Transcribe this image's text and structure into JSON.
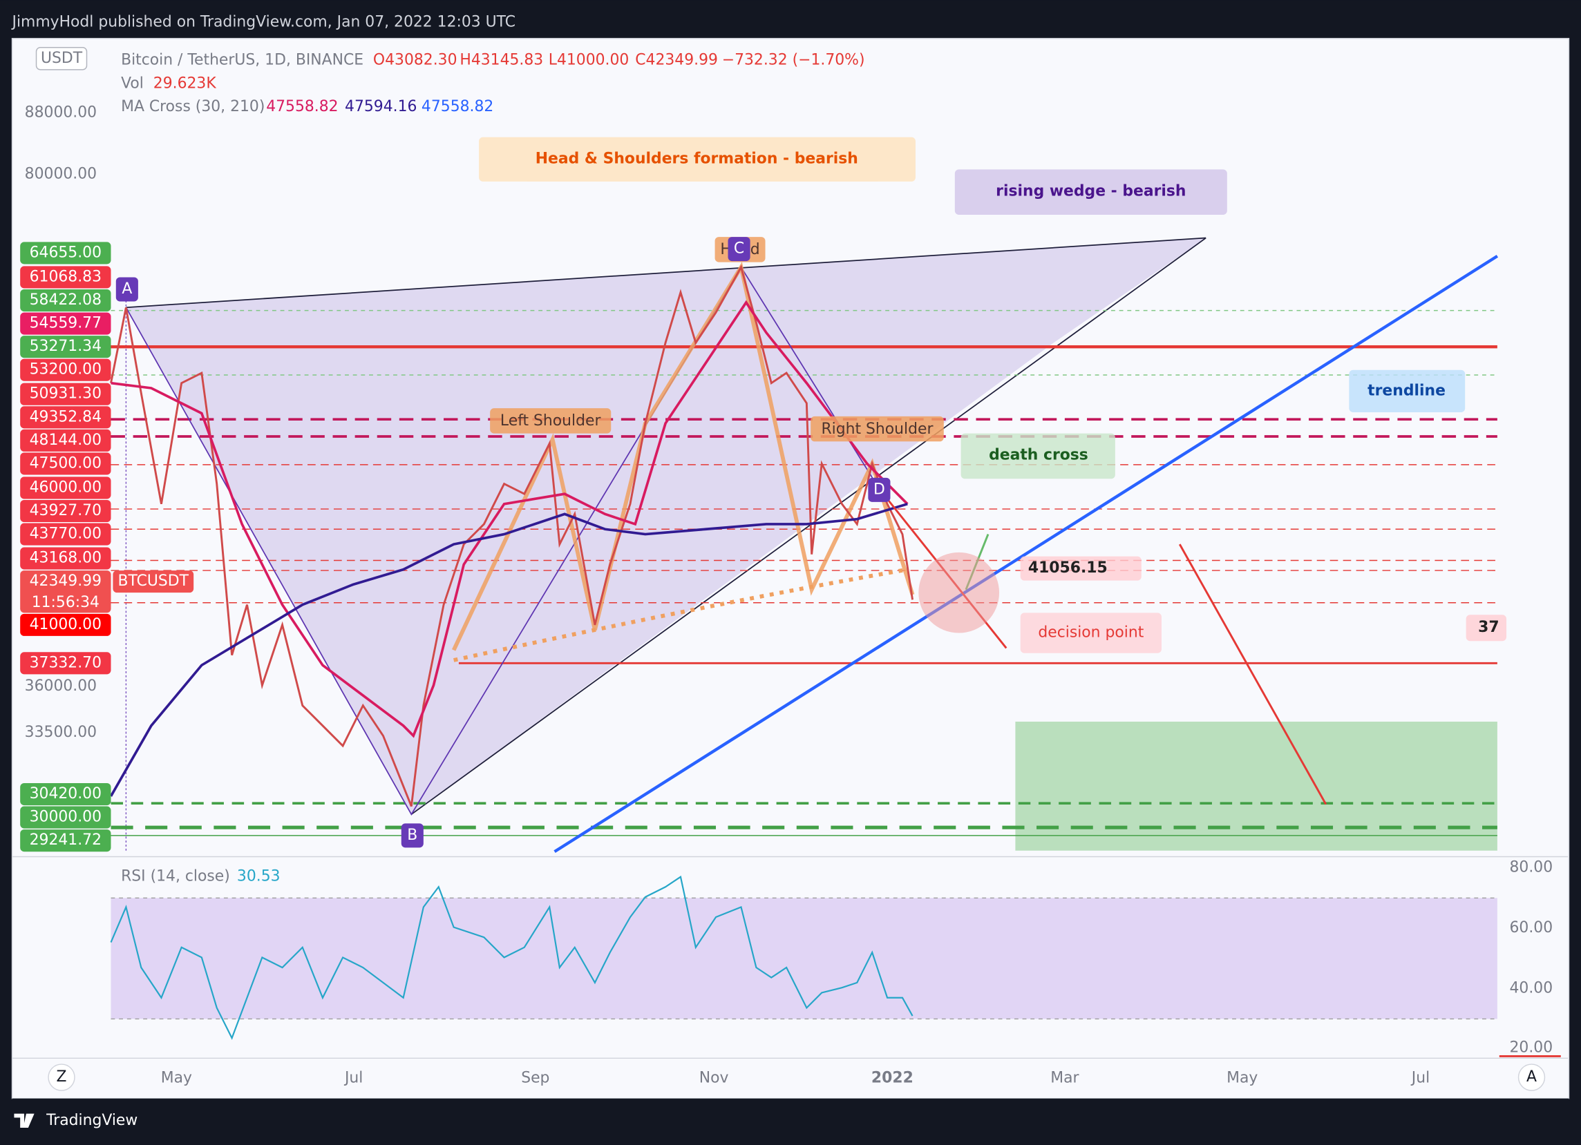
{
  "header": {
    "publisher": "JimmyHodl published on TradingView.com, Jan 07, 2022 12:03 UTC"
  },
  "legend": {
    "symbol": "Bitcoin / TetherUS, 1D, BINANCE",
    "ohlc": [
      "O43082.30",
      "H43145.83",
      "L41000.00",
      "C42349.99",
      "−732.32 (−1.70%)"
    ],
    "volume_label": "Vol",
    "volume": "29.623K",
    "ma_label": "MA Cross (30, 210)",
    "ma_values": [
      "47558.82",
      "47594.16",
      "47558.82"
    ]
  },
  "currency": "USDT",
  "price_axis": [
    "88000.00",
    "80000.00",
    "36000.00",
    "33500.00"
  ],
  "price_labels": [
    "64655.00",
    "61068.83",
    "58422.08",
    "54559.77",
    "53271.34",
    "53200.00",
    "50931.30",
    "49352.84",
    "48144.00",
    "47500.00",
    "46000.00",
    "43927.70",
    "43770.00",
    "43168.00",
    "42349.99",
    "41000.00",
    "37332.70",
    "30420.00",
    "30000.00",
    "29241.72"
  ],
  "countdown": "11:56:34",
  "symbol_tag": "BTCUSDT",
  "annotations": {
    "head_shoulders": "Head & Shoulders formation - bearish",
    "wedge": "rising wedge - bearish",
    "left_shoulder": "Left Shoulder",
    "right_shoulder": "Right Shoulder",
    "head": "Head",
    "death_cross": "death cross",
    "trendline": "trendline",
    "level": "41056.15",
    "decision": "decision point",
    "points": [
      "A",
      "B",
      "C",
      "D"
    ],
    "cut_label": "37"
  },
  "rsi": {
    "label": "RSI (14, close)",
    "value": "30.53",
    "axis": [
      "80.00",
      "60.00",
      "40.00",
      "20.00"
    ]
  },
  "time_axis": [
    "May",
    "Jul",
    "Sep",
    "Nov",
    "2022",
    "Mar",
    "May",
    "Jul"
  ],
  "controls": [
    "Z",
    "A"
  ],
  "footer": {
    "brand": "TradingView"
  }
}
